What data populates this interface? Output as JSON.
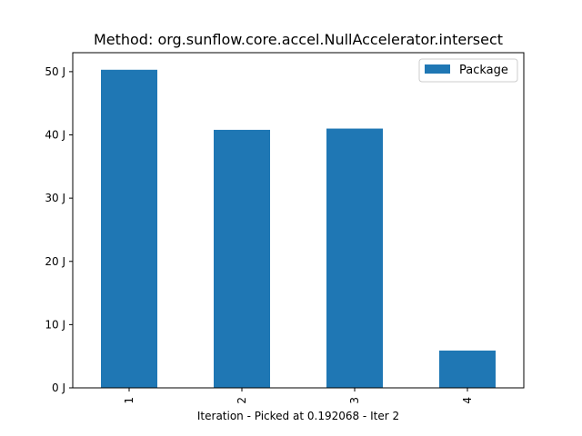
{
  "chart_data": {
    "type": "bar",
    "title": "Method: org.sunflow.core.accel.NullAccelerator.intersect",
    "xlabel": "Iteration - Picked at 0.192068 - Iter 2",
    "ylabel": "",
    "categories": [
      "1",
      "2",
      "3",
      "4"
    ],
    "series": [
      {
        "name": "Package",
        "values": [
          50.3,
          40.8,
          41.0,
          5.9
        ],
        "color": "#1f77b4"
      }
    ],
    "ylim": [
      0,
      53
    ],
    "yticks": [
      {
        "value": 0,
        "label": "0 J"
      },
      {
        "value": 10,
        "label": "10 J"
      },
      {
        "value": 20,
        "label": "20 J"
      },
      {
        "value": 30,
        "label": "30 J"
      },
      {
        "value": 40,
        "label": "40 J"
      },
      {
        "value": 50,
        "label": "50 J"
      }
    ],
    "xtick_rotation": "vertical",
    "grid": false,
    "legend": {
      "placement": "top-right"
    }
  }
}
